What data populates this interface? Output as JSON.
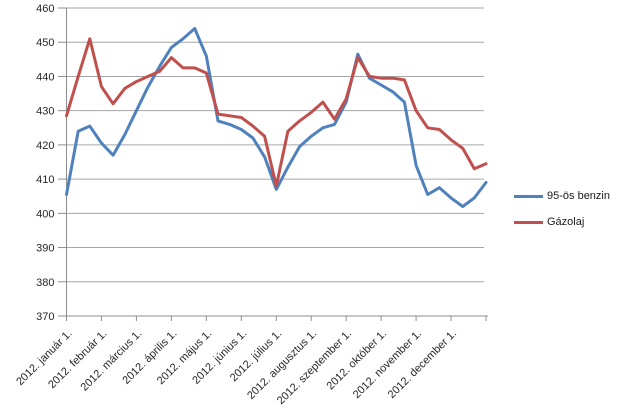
{
  "chart_data": {
    "type": "line",
    "title": "",
    "ylim": [
      370,
      460
    ],
    "y_tick_step": 10,
    "grid": true,
    "legend_position": "right",
    "x_tick_labels": [
      "2012. január 1.",
      "2012. február 1.",
      "2012. március 1.",
      "2012. április 1.",
      "2012. május 1.",
      "2012. június 1.",
      "2012. július 1.",
      "2012. augusztus 1.",
      "2012. szeptember 1.",
      "2012. október 1.",
      "2012. november 1.",
      "2012. december 1."
    ],
    "points_per_tick": 3,
    "series": [
      {
        "name": "95-ös benzin",
        "color": "#4F81BD",
        "values": [
          405.5,
          424,
          425.5,
          420.5,
          417,
          423,
          430,
          437,
          443,
          448.5,
          451,
          454,
          446,
          427,
          426,
          424.5,
          422,
          416.5,
          407,
          413.5,
          419.5,
          422.5,
          425,
          426,
          432.5,
          446.5,
          439.5,
          437.5,
          435.5,
          432.5,
          414,
          405.5,
          407.5,
          404.5,
          402,
          404.5,
          409
        ]
      },
      {
        "name": "Gázolaj",
        "color": "#C0504D",
        "values": [
          428.5,
          440,
          451,
          437,
          432,
          436.5,
          438.5,
          440,
          441.5,
          445.5,
          442.5,
          442.5,
          441,
          429,
          428.5,
          428,
          425.5,
          422.5,
          408,
          424,
          427,
          429.5,
          432.5,
          427.5,
          433.5,
          445.5,
          440,
          439.5,
          439.5,
          439,
          430,
          425,
          424.5,
          421.5,
          419,
          413,
          414.5
        ]
      }
    ]
  },
  "colors": {
    "gridline": "#a6a6a6",
    "axis": "#8c8c8c",
    "tick_text": "#262626"
  }
}
